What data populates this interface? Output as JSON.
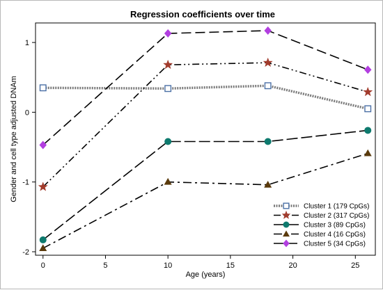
{
  "chart_data": {
    "type": "line",
    "title": "Regression coefficients over time",
    "xlabel": "Age (years)",
    "ylabel": "Gender and cell type adjusted DNAm",
    "x": [
      0,
      10,
      18,
      26
    ],
    "xlim": [
      -0.6,
      26.6
    ],
    "ylim": [
      -2.05,
      1.28
    ],
    "xticks": [
      0,
      5,
      10,
      15,
      20,
      25
    ],
    "yticks": [
      -2,
      -1,
      0,
      1
    ],
    "grid": false,
    "legend_position": "bottom-right",
    "series": [
      {
        "name": "Cluster 1 (179 CpGs)",
        "values": [
          0.35,
          0.34,
          0.38,
          0.05
        ],
        "color": "#7a7a7a",
        "marker": "open-square",
        "marker_color": "#4a6fa5",
        "dash": "dotted-thick"
      },
      {
        "name": "Cluster 2 (317 CpGs)",
        "values": [
          -1.07,
          0.68,
          0.71,
          0.29
        ],
        "color": "#000000",
        "marker": "star",
        "marker_color": "#a23b2c",
        "dash": "dash-dot-dot"
      },
      {
        "name": "Cluster 3 (89 CpGs)",
        "values": [
          -1.83,
          -0.42,
          -0.42,
          -0.26
        ],
        "color": "#000000",
        "marker": "circle",
        "marker_color": "#0e7a6e",
        "dash": "long-dash-1"
      },
      {
        "name": "Cluster 4 (16 CpGs)",
        "values": [
          -1.95,
          -1.0,
          -1.04,
          -0.59
        ],
        "color": "#000000",
        "marker": "triangle",
        "marker_color": "#5a3a0c",
        "dash": "long-dash-dot"
      },
      {
        "name": "Cluster 5 (34 CpGs)",
        "values": [
          -0.47,
          1.13,
          1.17,
          0.61
        ],
        "color": "#000000",
        "marker": "diamond",
        "marker_color": "#b23fe0",
        "dash": "long-dash-2"
      }
    ]
  }
}
